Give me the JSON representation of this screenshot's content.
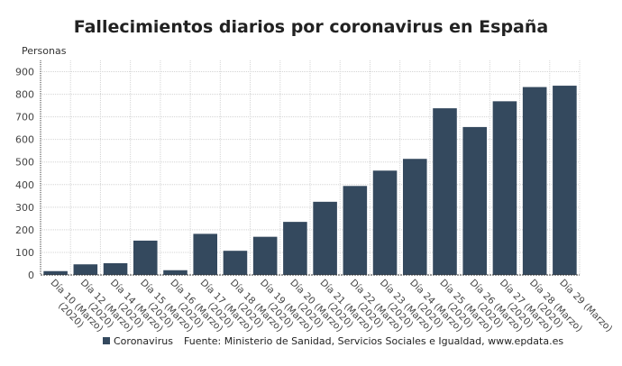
{
  "chart_data": {
    "type": "bar",
    "title": "Fallecimientos diarios por coronavirus en España",
    "ylabel": "Personas",
    "xlabel": "",
    "ylim": [
      0,
      950
    ],
    "yticks": [
      0,
      100,
      200,
      300,
      400,
      500,
      600,
      700,
      800,
      900
    ],
    "grid": true,
    "legend_position": "bottom",
    "color": "#34495e",
    "categories": [
      "Día 10 (Marzo) (2020)",
      "Día 12 (Marzo) (2020)",
      "Día 14 (Marzo) (2020)",
      "Día 15 (Marzo) (2020)",
      "Día 16 (Marzo) (2020)",
      "Día 17 (Marzo) (2020)",
      "Día 18 (Marzo) (2020)",
      "Día 19 (Marzo) (2020)",
      "Día 20 (Marzo) (2020)",
      "Día 21 (Marzo) (2020)",
      "Día 22 (Marzo) (2020)",
      "Día 23 (Marzo) (2020)",
      "Día 24 (Marzo) (2020)",
      "Día 25 (Marzo) (2020)",
      "Día 26 (Marzo) (2020)",
      "Día 27 (Marzo) (2020)",
      "Día 28 (Marzo) (2020)",
      "Día 29 (Marzo)"
    ],
    "series": [
      {
        "name": "Coronavirus",
        "values": [
          17,
          47,
          52,
          152,
          21,
          182,
          107,
          169,
          235,
          324,
          394,
          462,
          514,
          738,
          655,
          769,
          832,
          838
        ]
      }
    ],
    "source": "Fuente: Ministerio de Sanidad, Servicios Sociales e Igualdad, www.epdata.es"
  }
}
